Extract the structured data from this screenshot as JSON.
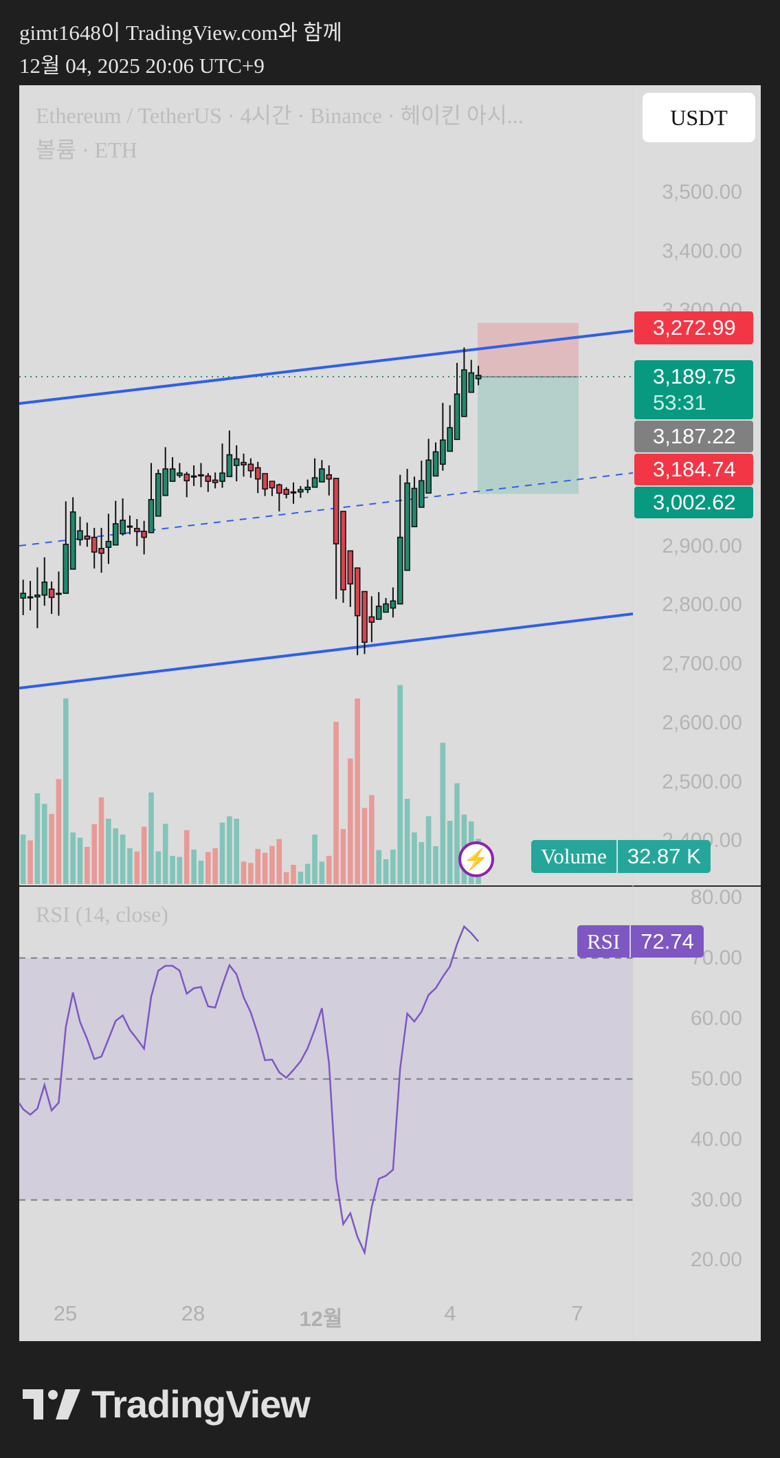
{
  "header": {
    "attribution": "gimt1648이 TradingView.com와 함께",
    "timestamp": "12월 04, 2025 20:06 UTC+9"
  },
  "legend": {
    "symbol_line": "Ethereum / TetherUS · 4시간 · Binance · 헤이킨 아시...",
    "volume_line": "볼륨 · ETH",
    "rsi_line": "RSI (14, close)"
  },
  "currency_button": "USDT",
  "price_axis": [
    "3,500.00",
    "3,400.00",
    "3,300.00",
    "2,900.00",
    "2,800.00",
    "2,700.00",
    "2,600.00",
    "2,500.00",
    "2,400.00"
  ],
  "rsi_axis": [
    "80.00",
    "70.00",
    "60.00",
    "50.00",
    "40.00",
    "30.00",
    "20.00"
  ],
  "time_axis": [
    "25",
    "28",
    "12월",
    "4",
    "7"
  ],
  "price_labels": {
    "target": "3,272.99",
    "last": "3,189.75",
    "countdown": "53:31",
    "entry": "3,187.22",
    "stop_marker": "3,184.74",
    "level": "3,002.62"
  },
  "volume_pill": {
    "label": "Volume",
    "value": "32.87 K"
  },
  "rsi_pill": {
    "label": "RSI",
    "value": "72.74"
  },
  "logo": "TradingView",
  "colors": {
    "up": "#1f8a6e",
    "down": "#d9434f",
    "vol_up": "#82c4b9",
    "vol_down": "#e89a97",
    "red_label": "#f23645",
    "green_label": "#089981",
    "grey_label": "#808080",
    "trendline": "#2f5fe8",
    "rsi": "#7e57c2",
    "volume_pill": "#26a69a"
  },
  "chart_data": {
    "type": "candlestick",
    "ohlc": [
      [
        2812,
        2843,
        2783,
        2820
      ],
      [
        2814,
        2841,
        2791,
        2814
      ],
      [
        2814,
        2864,
        2761,
        2817
      ],
      [
        2817,
        2881,
        2799,
        2839
      ],
      [
        2827,
        2840,
        2785,
        2813
      ],
      [
        2820,
        2857,
        2782,
        2820
      ],
      [
        2820,
        2976,
        2820,
        2903
      ],
      [
        2861,
        2983,
        2861,
        2958
      ],
      [
        2911,
        2950,
        2901,
        2926
      ],
      [
        2917,
        2940,
        2899,
        2912
      ],
      [
        2915,
        2931,
        2862,
        2890
      ],
      [
        2896,
        2931,
        2855,
        2888
      ],
      [
        2898,
        2955,
        2870,
        2908
      ],
      [
        2902,
        2977,
        2902,
        2938
      ],
      [
        2921,
        2981,
        2918,
        2944
      ],
      [
        2934,
        2952,
        2920,
        2934
      ],
      [
        2930,
        2946,
        2900,
        2925
      ],
      [
        2925,
        2943,
        2886,
        2915
      ],
      [
        2923,
        3041,
        2923,
        2979
      ],
      [
        2951,
        3030,
        2951,
        3023
      ],
      [
        2986,
        3068,
        2986,
        3031
      ],
      [
        3010,
        3051,
        3010,
        3031
      ],
      [
        3020,
        3041,
        3016,
        3024
      ],
      [
        3022,
        3026,
        2983,
        3011
      ],
      [
        3019,
        3037,
        3002,
        3019
      ],
      [
        3021,
        3041,
        3000,
        3021
      ],
      [
        3019,
        3024,
        2992,
        3010
      ],
      [
        3012,
        3025,
        2998,
        3008
      ],
      [
        3010,
        3074,
        2999,
        3024
      ],
      [
        3018,
        3096,
        3018,
        3055
      ],
      [
        3037,
        3071,
        3010,
        3048
      ],
      [
        3042,
        3057,
        3018,
        3038
      ],
      [
        3039,
        3049,
        3016,
        3028
      ],
      [
        3033,
        3043,
        2990,
        3014
      ],
      [
        3023,
        3023,
        2985,
        2997
      ],
      [
        3010,
        3010,
        2985,
        2999
      ],
      [
        3004,
        3006,
        2959,
        2990
      ],
      [
        2996,
        3000,
        2981,
        2988
      ],
      [
        2992,
        3008,
        2972,
        2992
      ],
      [
        2992,
        3002,
        2982,
        2996
      ],
      [
        2996,
        3013,
        2990,
        3000
      ],
      [
        3000,
        3049,
        3000,
        3016
      ],
      [
        3009,
        3046,
        3009,
        3031
      ],
      [
        3021,
        3037,
        2986,
        3014
      ],
      [
        3015,
        3015,
        2810,
        2904
      ],
      [
        2959,
        2959,
        2804,
        2826
      ],
      [
        2892,
        2892,
        2797,
        2836
      ],
      [
        2863,
        2863,
        2715,
        2782
      ],
      [
        2823,
        2823,
        2717,
        2737
      ],
      [
        2780,
        2815,
        2737,
        2771
      ],
      [
        2776,
        2822,
        2776,
        2798
      ],
      [
        2788,
        2812,
        2788,
        2802
      ],
      [
        2795,
        2830,
        2779,
        2807
      ],
      [
        2802,
        3021,
        2802,
        2915
      ],
      [
        2859,
        3031,
        2859,
        3007
      ],
      [
        2933,
        3018,
        2933,
        2998
      ],
      [
        2966,
        3045,
        2966,
        3011
      ],
      [
        2990,
        3082,
        2990,
        3046
      ],
      [
        3019,
        3076,
        3019,
        3060
      ],
      [
        3039,
        3143,
        3028,
        3080
      ],
      [
        3061,
        3139,
        3061,
        3101
      ],
      [
        3081,
        3211,
        3081,
        3158
      ],
      [
        3120,
        3237,
        3120,
        3199
      ],
      [
        3161,
        3216,
        3161,
        3194
      ],
      [
        3184,
        3206,
        3173,
        3189.75
      ]
    ],
    "volume_k": [
      36,
      31.7,
      66,
      58.3,
      51,
      76.3,
      135,
      37.5,
      33.7,
      27,
      43.5,
      63,
      47.5,
      40.5,
      36,
      26,
      23.7,
      41.7,
      66.5,
      23.7,
      43.8,
      20.5,
      19.7,
      39.2,
      25,
      17,
      23.3,
      26,
      44.7,
      49.3,
      47.5,
      16.3,
      15.3,
      25.5,
      22.7,
      27.7,
      32.7,
      8.7,
      14,
      9,
      14.7,
      36,
      16.3,
      20.5,
      118,
      40,
      91.3,
      135,
      55.3,
      64.7,
      24.7,
      18,
      25,
      144.7,
      62,
      37.5,
      30.5,
      49.3,
      27.5,
      102.7,
      46,
      73.3,
      50.5,
      45.5,
      32.87
    ],
    "volume_up": [
      1,
      0,
      1,
      1,
      0,
      0,
      1,
      1,
      1,
      0,
      0,
      0,
      1,
      1,
      1,
      1,
      0,
      0,
      1,
      1,
      1,
      1,
      1,
      0,
      1,
      1,
      0,
      0,
      1,
      1,
      1,
      0,
      0,
      0,
      0,
      0,
      0,
      0,
      0,
      1,
      1,
      1,
      1,
      0,
      0,
      0,
      0,
      0,
      0,
      0,
      1,
      1,
      1,
      1,
      1,
      1,
      1,
      1,
      1,
      1,
      1,
      1,
      1,
      1,
      1
    ],
    "rsi": [
      45.0,
      44.1,
      45.1,
      49.0,
      44.8,
      46.1,
      58.6,
      64.3,
      59.4,
      56.6,
      53.3,
      53.7,
      56.6,
      59.6,
      60.5,
      58.1,
      56.6,
      55.0,
      63.6,
      67.9,
      68.7,
      68.7,
      67.9,
      64.1,
      65.0,
      65.2,
      62.0,
      61.8,
      65.5,
      68.8,
      67.3,
      63.5,
      61.0,
      57.4,
      53.1,
      53.2,
      51.1,
      50.2,
      51.5,
      52.9,
      55.1,
      58.2,
      61.7,
      52.6,
      33.5,
      26.0,
      27.8,
      23.9,
      21.3,
      28.8,
      33.5,
      34.0,
      35.0,
      51.7,
      60.8,
      59.5,
      61.1,
      63.9,
      65.0,
      66.9,
      68.6,
      72.3,
      75.2,
      74.1,
      72.74
    ],
    "rsi_levels": [
      70,
      50,
      30
    ],
    "price_range": [
      2400,
      3500
    ],
    "rsi_range": [
      20,
      80
    ],
    "position": {
      "target": 3272.99,
      "entry": 3187.22,
      "stop": 3002.62
    }
  }
}
